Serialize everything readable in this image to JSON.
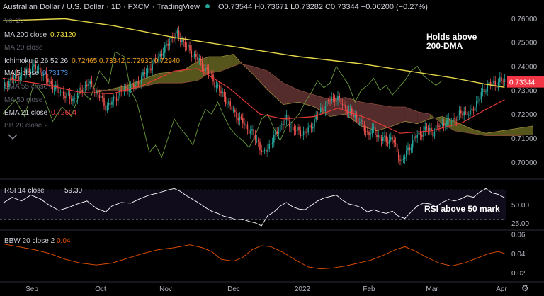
{
  "header": {
    "symbol": "Australian Dollar / U.S. Dollar · 1D · FXCM · TradingView",
    "ohlc": "O0.73544 H0.73671 L0.73282 C0.73344 −0.00200 (−0.27%)"
  },
  "legends": [
    {
      "label": "Vol 20",
      "value": "",
      "color": "#6a6d78"
    },
    {
      "label": "MA 200 close",
      "value": "0.73120",
      "color": "#f5e342"
    },
    {
      "label": "MA 20 close",
      "value": "",
      "color": "#6a6d78"
    },
    {
      "label": "Ichimoku 9 26 52 26",
      "value": "0.72465  0.73342  0.72930  0.72940",
      "color": "#f5a623"
    },
    {
      "label": "MA 5 close",
      "value": "0.73173",
      "color": "#4a90e2"
    },
    {
      "label": "EMA 55 close",
      "value": "",
      "color": "#6a6d78"
    },
    {
      "label": "MA 50 close",
      "value": "",
      "color": "#6a6d78"
    },
    {
      "label": "EMA 21 close",
      "value": "0.72604",
      "color": "#f23645"
    },
    {
      "label": "BB 20 close 2",
      "value": "",
      "color": "#6a6d78"
    }
  ],
  "annotations": {
    "price": "Holds above\n200-DMA",
    "rsi": "RSI above 50 mark"
  },
  "colors": {
    "up": "#26a69a",
    "down": "#ef5350",
    "ma200": "#e6d64a",
    "ema21": "#e53935",
    "chikou": "#6a9a3a",
    "kumo_bull": "#5a5a1e",
    "kumo_bear": "#5a2e2e",
    "current": "#f23645",
    "osc": "#ffffff",
    "bbw": "#e65100"
  },
  "chart_data": [
    {
      "type": "candlestick",
      "title": "Australian Dollar / U.S. Dollar, 1D, FXCM",
      "x_ticks": [
        "Sep",
        "Oct",
        "Nov",
        "Dec",
        "2022",
        "Feb",
        "Mar",
        "Apr"
      ],
      "y_ticks": [
        0.76,
        0.75,
        0.74,
        0.73,
        0.72,
        0.71,
        0.7
      ],
      "ylim": [
        0.6955,
        0.7635
      ],
      "current_price": "0.73344",
      "close_path": [
        [
          0,
          0.731
        ],
        [
          5,
          0.7345
        ],
        [
          10,
          0.736
        ],
        [
          15,
          0.738
        ],
        [
          20,
          0.7395
        ],
        [
          25,
          0.7375
        ],
        [
          30,
          0.733
        ],
        [
          35,
          0.73
        ],
        [
          40,
          0.728
        ],
        [
          45,
          0.726
        ],
        [
          50,
          0.73
        ],
        [
          55,
          0.733
        ],
        [
          60,
          0.729
        ],
        [
          63,
          0.7265
        ],
        [
          66,
          0.723
        ],
        [
          70,
          0.725
        ],
        [
          75,
          0.729
        ],
        [
          80,
          0.731
        ],
        [
          85,
          0.732
        ],
        [
          90,
          0.736
        ],
        [
          95,
          0.74
        ],
        [
          100,
          0.744
        ],
        [
          105,
          0.748
        ],
        [
          108,
          0.752
        ],
        [
          112,
          0.753
        ],
        [
          116,
          0.75
        ],
        [
          120,
          0.746
        ],
        [
          124,
          0.744
        ],
        [
          128,
          0.74
        ],
        [
          132,
          0.7375
        ],
        [
          136,
          0.733
        ],
        [
          140,
          0.729
        ],
        [
          144,
          0.725
        ],
        [
          148,
          0.721
        ],
        [
          152,
          0.718
        ],
        [
          156,
          0.715
        ],
        [
          160,
          0.712
        ],
        [
          164,
          0.708
        ],
        [
          167,
          0.703
        ],
        [
          170,
          0.706
        ],
        [
          174,
          0.71
        ],
        [
          178,
          0.715
        ],
        [
          182,
          0.718
        ],
        [
          186,
          0.714
        ],
        [
          190,
          0.7125
        ],
        [
          194,
          0.712
        ],
        [
          198,
          0.715
        ],
        [
          202,
          0.72
        ],
        [
          206,
          0.723
        ],
        [
          210,
          0.726
        ],
        [
          214,
          0.727
        ],
        [
          218,
          0.724
        ],
        [
          222,
          0.721
        ],
        [
          226,
          0.719
        ],
        [
          230,
          0.716
        ],
        [
          234,
          0.712
        ],
        [
          238,
          0.713
        ],
        [
          242,
          0.71
        ],
        [
          246,
          0.709
        ],
        [
          250,
          0.71
        ],
        [
          253,
          0.704
        ],
        [
          256,
          0.7
        ],
        [
          260,
          0.705
        ],
        [
          264,
          0.71
        ],
        [
          268,
          0.712
        ],
        [
          272,
          0.714
        ],
        [
          276,
          0.7125
        ],
        [
          280,
          0.715
        ],
        [
          284,
          0.7165
        ],
        [
          288,
          0.7175
        ],
        [
          292,
          0.719
        ],
        [
          296,
          0.721
        ],
        [
          300,
          0.72
        ],
        [
          304,
          0.725
        ],
        [
          308,
          0.729
        ],
        [
          312,
          0.733
        ],
        [
          316,
          0.732
        ],
        [
          319,
          0.7345
        ],
        [
          322,
          0.7334
        ]
      ],
      "ma200_path": [
        [
          0,
          0.759
        ],
        [
          40,
          0.7598
        ],
        [
          70,
          0.757
        ],
        [
          110,
          0.752
        ],
        [
          150,
          0.748
        ],
        [
          190,
          0.744
        ],
        [
          230,
          0.741
        ],
        [
          260,
          0.738
        ],
        [
          290,
          0.735
        ],
        [
          310,
          0.7325
        ],
        [
          322,
          0.7312
        ]
      ],
      "ema21_path": [
        [
          0,
          0.735
        ],
        [
          30,
          0.732
        ],
        [
          50,
          0.729
        ],
        [
          70,
          0.7285
        ],
        [
          90,
          0.732
        ],
        [
          110,
          0.738
        ],
        [
          125,
          0.739
        ],
        [
          145,
          0.731
        ],
        [
          165,
          0.72
        ],
        [
          180,
          0.718
        ],
        [
          200,
          0.719
        ],
        [
          215,
          0.7225
        ],
        [
          235,
          0.718
        ],
        [
          255,
          0.712
        ],
        [
          275,
          0.713
        ],
        [
          295,
          0.7165
        ],
        [
          310,
          0.722
        ],
        [
          322,
          0.726
        ]
      ],
      "chikou_path": [
        [
          0,
          0.72
        ],
        [
          8,
          0.726
        ],
        [
          14,
          0.719
        ],
        [
          20,
          0.733
        ],
        [
          26,
          0.728
        ],
        [
          32,
          0.717
        ],
        [
          38,
          0.723
        ],
        [
          44,
          0.719
        ],
        [
          50,
          0.73
        ],
        [
          56,
          0.726
        ],
        [
          62,
          0.738
        ],
        [
          68,
          0.733
        ],
        [
          72,
          0.746
        ],
        [
          78,
          0.744
        ],
        [
          82,
          0.73
        ],
        [
          86,
          0.725
        ],
        [
          90,
          0.715
        ],
        [
          94,
          0.704
        ],
        [
          98,
          0.707
        ],
        [
          102,
          0.702
        ],
        [
          106,
          0.71
        ],
        [
          110,
          0.718
        ],
        [
          114,
          0.714
        ],
        [
          118,
          0.711
        ],
        [
          122,
          0.707
        ],
        [
          126,
          0.716
        ],
        [
          130,
          0.722
        ],
        [
          134,
          0.72
        ],
        [
          138,
          0.725
        ],
        [
          142,
          0.719
        ],
        [
          146,
          0.714
        ],
        [
          150,
          0.711
        ],
        [
          154,
          0.709
        ],
        [
          158,
          0.706
        ],
        [
          162,
          0.711
        ],
        [
          166,
          0.718
        ],
        [
          170,
          0.72
        ],
        [
          174,
          0.714
        ],
        [
          178,
          0.709
        ],
        [
          182,
          0.715
        ],
        [
          186,
          0.717
        ],
        [
          190,
          0.72
        ],
        [
          194,
          0.725
        ],
        [
          198,
          0.729
        ],
        [
          202,
          0.734
        ],
        [
          206,
          0.731
        ],
        [
          210,
          0.733
        ],
        [
          214,
          0.74
        ],
        [
          218,
          0.736
        ],
        [
          222,
          0.732
        ],
        [
          226,
          0.725
        ],
        [
          230,
          0.73
        ],
        [
          234,
          0.732
        ],
        [
          238,
          0.735
        ],
        [
          242,
          0.73
        ],
        [
          246,
          0.732
        ],
        [
          250,
          0.728
        ],
        [
          254,
          0.731
        ],
        [
          258,
          0.734
        ],
        [
          262,
          0.738
        ],
        [
          266,
          0.74
        ],
        [
          270,
          0.736
        ],
        [
          274,
          0.734
        ],
        [
          278,
          0.732
        ],
        [
          282,
          0.734
        ]
      ],
      "kumo": [
        [
          60,
          0.729,
          0.73
        ],
        [
          80,
          0.732,
          0.73
        ],
        [
          100,
          0.737,
          0.733
        ],
        [
          115,
          0.738,
          0.733
        ],
        [
          125,
          0.742,
          0.734
        ],
        [
          132,
          0.744,
          0.737
        ],
        [
          140,
          0.744,
          0.738
        ],
        [
          148,
          0.745,
          0.74
        ],
        [
          152,
          0.742,
          0.741
        ],
        [
          160,
          0.737,
          0.74
        ],
        [
          170,
          0.73,
          0.738
        ],
        [
          180,
          0.724,
          0.733
        ],
        [
          190,
          0.725,
          0.73
        ],
        [
          200,
          0.723,
          0.728
        ],
        [
          210,
          0.719,
          0.726
        ],
        [
          220,
          0.72,
          0.727
        ],
        [
          230,
          0.715,
          0.725
        ],
        [
          240,
          0.713,
          0.724
        ],
        [
          250,
          0.715,
          0.723
        ],
        [
          258,
          0.717,
          0.723
        ],
        [
          266,
          0.716,
          0.721
        ],
        [
          274,
          0.718,
          0.72
        ],
        [
          282,
          0.719,
          0.716
        ],
        [
          290,
          0.717,
          0.713
        ],
        [
          300,
          0.714,
          0.712
        ],
        [
          310,
          0.712,
          0.711
        ],
        [
          320,
          0.713,
          0.711
        ],
        [
          330,
          0.714,
          0.711
        ],
        [
          340,
          0.715,
          0.7115
        ]
      ]
    },
    {
      "type": "line",
      "title": "RSI 14 close",
      "value": "59.30",
      "label": "RSI 14 close",
      "y_ticks": [
        50.0,
        25.0
      ],
      "bands": [
        70,
        30
      ],
      "ylim": [
        18,
        80
      ],
      "path": [
        [
          0,
          52
        ],
        [
          6,
          60
        ],
        [
          12,
          55
        ],
        [
          18,
          63
        ],
        [
          24,
          58
        ],
        [
          30,
          49
        ],
        [
          36,
          42
        ],
        [
          42,
          46
        ],
        [
          48,
          51
        ],
        [
          54,
          55
        ],
        [
          60,
          45
        ],
        [
          66,
          40
        ],
        [
          70,
          48
        ],
        [
          76,
          53
        ],
        [
          82,
          52
        ],
        [
          88,
          58
        ],
        [
          94,
          63
        ],
        [
          100,
          66
        ],
        [
          106,
          70
        ],
        [
          110,
          72
        ],
        [
          114,
          68
        ],
        [
          118,
          62
        ],
        [
          122,
          57
        ],
        [
          126,
          52
        ],
        [
          130,
          46
        ],
        [
          134,
          41
        ],
        [
          138,
          38
        ],
        [
          142,
          34
        ],
        [
          146,
          32
        ],
        [
          150,
          29
        ],
        [
          154,
          30
        ],
        [
          158,
          27
        ],
        [
          162,
          25
        ],
        [
          166,
          21
        ],
        [
          170,
          35
        ],
        [
          174,
          40
        ],
        [
          178,
          48
        ],
        [
          182,
          53
        ],
        [
          186,
          47
        ],
        [
          190,
          44
        ],
        [
          194,
          43
        ],
        [
          198,
          49
        ],
        [
          202,
          55
        ],
        [
          206,
          59
        ],
        [
          210,
          61
        ],
        [
          214,
          63
        ],
        [
          218,
          56
        ],
        [
          222,
          51
        ],
        [
          226,
          49
        ],
        [
          230,
          46
        ],
        [
          234,
          40
        ],
        [
          238,
          43
        ],
        [
          242,
          40
        ],
        [
          246,
          38
        ],
        [
          250,
          41
        ],
        [
          254,
          34
        ],
        [
          258,
          31
        ],
        [
          262,
          40
        ],
        [
          266,
          48
        ],
        [
          270,
          52
        ],
        [
          274,
          51
        ],
        [
          278,
          47
        ],
        [
          282,
          53
        ],
        [
          286,
          57
        ],
        [
          290,
          55
        ],
        [
          294,
          58
        ],
        [
          298,
          62
        ],
        [
          302,
          60
        ],
        [
          306,
          67
        ],
        [
          310,
          72
        ],
        [
          314,
          66
        ],
        [
          318,
          64
        ],
        [
          322,
          59.3
        ]
      ]
    },
    {
      "type": "line",
      "title": "BBW 20 close 2",
      "value": "0.04",
      "label": "BBW 20 close 2",
      "y_ticks": [
        0.06,
        0.04,
        0.02
      ],
      "ylim": [
        0.012,
        0.062
      ],
      "path": [
        [
          0,
          0.05
        ],
        [
          10,
          0.047
        ],
        [
          20,
          0.044
        ],
        [
          30,
          0.04
        ],
        [
          40,
          0.034
        ],
        [
          50,
          0.03
        ],
        [
          60,
          0.028
        ],
        [
          70,
          0.03
        ],
        [
          80,
          0.035
        ],
        [
          90,
          0.04
        ],
        [
          100,
          0.044
        ],
        [
          110,
          0.046
        ],
        [
          120,
          0.049
        ],
        [
          128,
          0.046
        ],
        [
          134,
          0.042
        ],
        [
          140,
          0.034
        ],
        [
          148,
          0.032
        ],
        [
          154,
          0.036
        ],
        [
          160,
          0.044
        ],
        [
          166,
          0.048
        ],
        [
          172,
          0.047
        ],
        [
          180,
          0.041
        ],
        [
          188,
          0.033
        ],
        [
          196,
          0.026
        ],
        [
          204,
          0.024
        ],
        [
          212,
          0.025
        ],
        [
          220,
          0.027
        ],
        [
          228,
          0.03
        ],
        [
          236,
          0.033
        ],
        [
          244,
          0.038
        ],
        [
          252,
          0.044
        ],
        [
          258,
          0.047
        ],
        [
          264,
          0.043
        ],
        [
          272,
          0.036
        ],
        [
          280,
          0.03
        ],
        [
          288,
          0.027
        ],
        [
          296,
          0.03
        ],
        [
          304,
          0.035
        ],
        [
          312,
          0.04
        ],
        [
          318,
          0.042
        ],
        [
          322,
          0.04
        ]
      ]
    }
  ]
}
